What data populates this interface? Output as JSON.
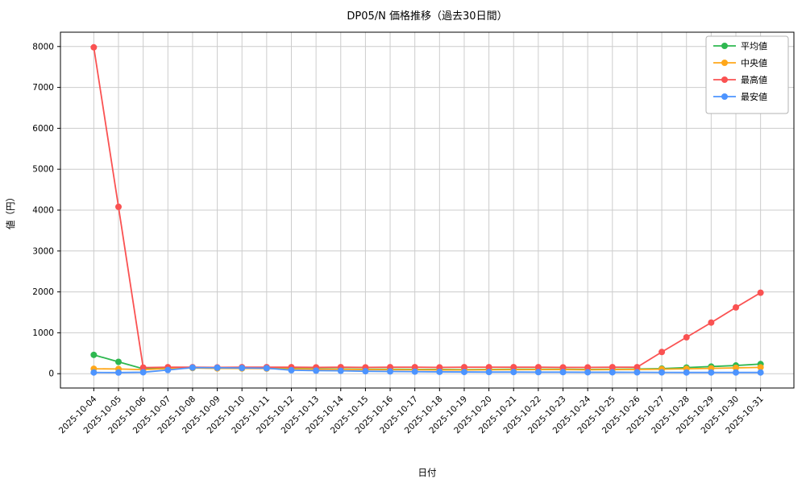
{
  "figure": {
    "title": "DP05/N 価格推移（過去30日間）",
    "xlabel": "日付",
    "ylabel": "値（円）"
  },
  "chart_data": {
    "type": "line",
    "title": "DP05/N 価格推移（過去30日間）",
    "xlabel": "日付",
    "ylabel": "値（円）",
    "grid": true,
    "legend_position": "top-right",
    "ylim": [
      -350,
      8350
    ],
    "yticks": [
      0,
      1000,
      2000,
      3000,
      4000,
      5000,
      6000,
      7000,
      8000
    ],
    "x": [
      "2025-10-04",
      "2025-10-05",
      "2025-10-06",
      "2025-10-07",
      "2025-10-08",
      "2025-10-09",
      "2025-10-10",
      "2025-10-11",
      "2025-10-12",
      "2025-10-13",
      "2025-10-14",
      "2025-10-15",
      "2025-10-16",
      "2025-10-17",
      "2025-10-18",
      "2025-10-19",
      "2025-10-20",
      "2025-10-21",
      "2025-10-22",
      "2025-10-23",
      "2025-10-24",
      "2025-10-25",
      "2025-10-26",
      "2025-10-27",
      "2025-10-28",
      "2025-10-29",
      "2025-10-30",
      "2025-10-31"
    ],
    "series": [
      {
        "name": "平均値",
        "color": "#2eb850",
        "values": [
          460,
          290,
          120,
          135,
          140,
          135,
          130,
          130,
          125,
          120,
          115,
          110,
          110,
          105,
          105,
          100,
          105,
          110,
          110,
          110,
          105,
          110,
          115,
          125,
          150,
          175,
          200,
          235
        ]
      },
      {
        "name": "中央値",
        "color": "#ffa71a",
        "values": [
          120,
          115,
          100,
          125,
          140,
          130,
          128,
          125,
          118,
          110,
          105,
          100,
          98,
          95,
          92,
          90,
          95,
          98,
          100,
          100,
          96,
          100,
          104,
          110,
          120,
          130,
          142,
          155
        ]
      },
      {
        "name": "最高値",
        "color": "#fa5252",
        "values": [
          7980,
          4080,
          150,
          160,
          160,
          155,
          160,
          160,
          160,
          155,
          160,
          155,
          160,
          160,
          155,
          160,
          160,
          160,
          160,
          155,
          155,
          160,
          160,
          530,
          890,
          1250,
          1620,
          1980
        ]
      },
      {
        "name": "最安値",
        "color": "#4d94ff",
        "values": [
          30,
          28,
          35,
          90,
          150,
          145,
          140,
          135,
          85,
          75,
          70,
          60,
          55,
          50,
          45,
          42,
          40,
          40,
          38,
          38,
          35,
          35,
          34,
          32,
          30,
          30,
          30,
          30
        ]
      }
    ]
  }
}
